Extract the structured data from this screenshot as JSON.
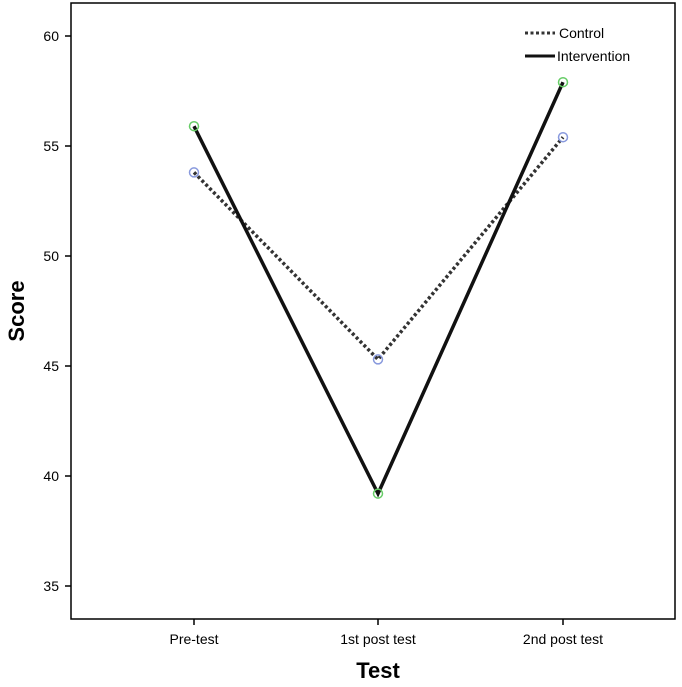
{
  "chart_data": {
    "type": "line",
    "title": "",
    "xlabel": "Test",
    "ylabel": "Score",
    "categories": [
      "Pre-test",
      "1st post test",
      "2nd post test"
    ],
    "ylim": [
      33,
      61
    ],
    "yticks": [
      35,
      40,
      45,
      50,
      55,
      60
    ],
    "grid": false,
    "legend_position": "top-right",
    "series": [
      {
        "name": "Control",
        "values": [
          53.8,
          45.3,
          55.4
        ],
        "line_style": "dotted",
        "line_color": "#333333",
        "marker_color": "#8899dd"
      },
      {
        "name": "Intervention",
        "values": [
          55.9,
          39.2,
          57.9
        ],
        "line_style": "solid",
        "line_color": "#111111",
        "marker_color": "#66cc66"
      }
    ]
  }
}
